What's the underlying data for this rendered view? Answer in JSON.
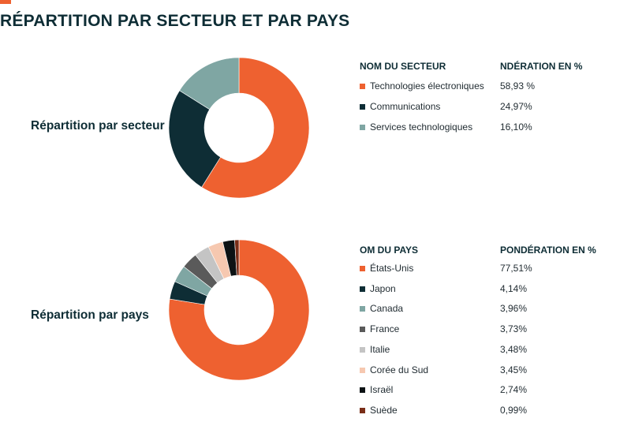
{
  "page": {
    "title": "RÉPARTITION PAR SECTEUR ET PAR PAYS",
    "accent_color": "#ee6130"
  },
  "chart_data": [
    {
      "type": "pie",
      "title": "Répartition par secteur",
      "table_headers": {
        "name": "NOM DU SECTEUR",
        "value": "NDÉRATION EN %"
      },
      "categories": [
        "Technologies électroniques",
        "Communications",
        "Services technologiques"
      ],
      "values": [
        58.93,
        24.97,
        16.1
      ],
      "labels": [
        "58,93 %",
        "24,97%",
        "16,10%"
      ],
      "colors": [
        "#ee6130",
        "#0e2d35",
        "#7fa6a3"
      ]
    },
    {
      "type": "pie",
      "title": "Répartition par pays",
      "table_headers": {
        "name": "OM DU PAYS",
        "value": "PONDÉRATION EN %"
      },
      "categories": [
        "États-Unis",
        "Japon",
        "Canada",
        "France",
        "Italie",
        "Corée du Sud",
        "Israël",
        "Suède"
      ],
      "values": [
        77.51,
        4.14,
        3.96,
        3.73,
        3.48,
        3.45,
        2.74,
        0.99
      ],
      "labels": [
        "77,51%",
        "4,14%",
        "3,96%",
        "3,73%",
        "3,48%",
        "3,45%",
        "2,74%",
        "0,99%"
      ],
      "colors": [
        "#ee6130",
        "#0e2d35",
        "#7fa6a3",
        "#5a5a5a",
        "#c4c4c4",
        "#f6c8b0",
        "#0c1214",
        "#7a2e18"
      ]
    }
  ]
}
